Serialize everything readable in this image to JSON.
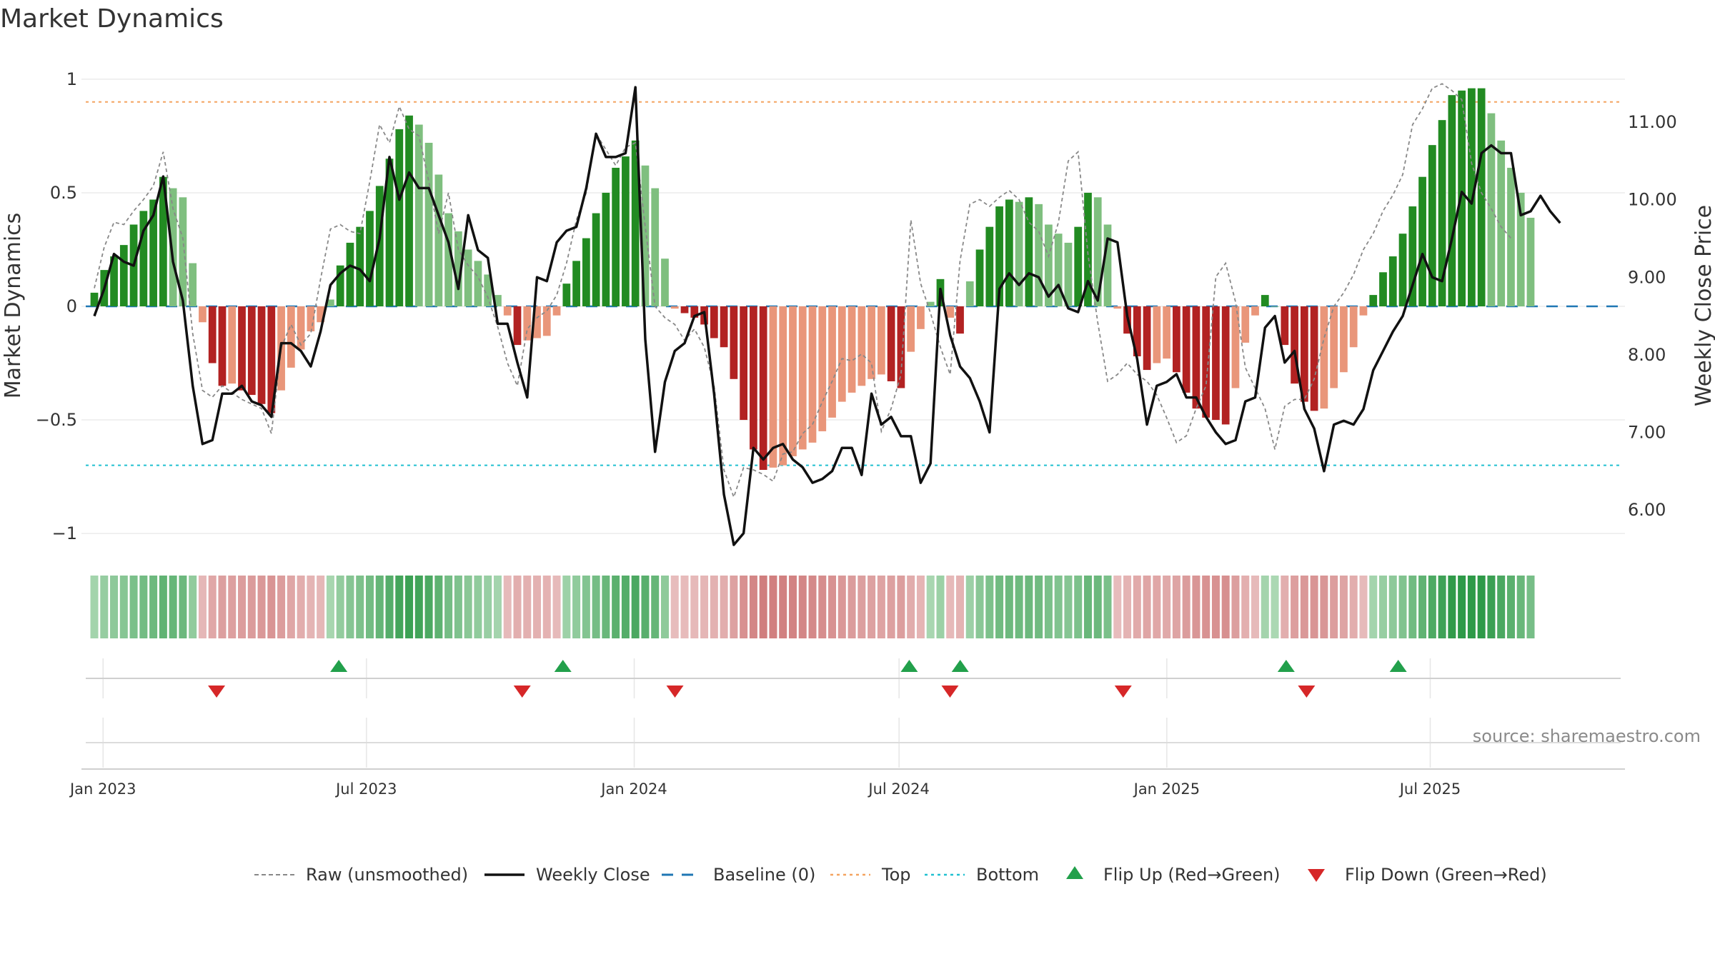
{
  "title": "Market Dynamics",
  "source": "source: sharemaestro.com",
  "colors": {
    "green_strong": "#228b22",
    "green_light": "#7fbf7f",
    "red_strong": "#b22222",
    "red_light": "#e9967a",
    "close_line": "#111111",
    "raw_line": "#888888",
    "baseline": "#1f77b4",
    "top_line": "#f4a460",
    "bottom_line": "#20c0d0",
    "flip_up": "#22a04b",
    "flip_down": "#d62728"
  },
  "legend": [
    {
      "key": "raw",
      "label": "Raw (unsmoothed)"
    },
    {
      "key": "close",
      "label": "Weekly Close"
    },
    {
      "key": "baseline",
      "label": "Baseline (0)"
    },
    {
      "key": "top",
      "label": "Top"
    },
    {
      "key": "bottom",
      "label": "Bottom"
    },
    {
      "key": "up",
      "label": "Flip Up (Red→Green)"
    },
    {
      "key": "down",
      "label": "Flip Down (Green→Red)"
    }
  ],
  "chart_data": {
    "type": "bar",
    "title": "Market Dynamics",
    "ylabel": "Market Dynamics",
    "y2label": "Weekly Close Price",
    "ylim": [
      -1.05,
      1.05
    ],
    "y2lim": [
      5.55,
      11.7
    ],
    "yticks": [
      1,
      0.5,
      0,
      -0.5,
      -1
    ],
    "ytick_labels": [
      "1",
      "0.5",
      "0",
      "−0.5",
      "−1"
    ],
    "y2ticks": [
      11,
      10,
      9,
      8,
      7,
      6
    ],
    "y2tick_labels": [
      "11.00",
      "10.00",
      "9.00",
      "8.00",
      "7.00",
      "6.00"
    ],
    "x_start": "2022-12-26",
    "x_end": "2025-09-08",
    "x_step_days": 7,
    "xticks": [
      {
        "date": "2023-01-01",
        "label": "Jan 2023"
      },
      {
        "date": "2023-07-01",
        "label": "Jul 2023"
      },
      {
        "date": "2024-01-01",
        "label": "Jan 2024"
      },
      {
        "date": "2024-07-01",
        "label": "Jul 2024"
      },
      {
        "date": "2025-01-01",
        "label": "Jan 2025"
      },
      {
        "date": "2025-07-01",
        "label": "Jul 2025"
      }
    ],
    "top_level": 0.9,
    "bottom_level": -0.7,
    "baseline": 0,
    "grid": true,
    "legend_position": "bottom",
    "series": [
      {
        "name": "Market Dynamics",
        "values": [
          0.06,
          0.16,
          0.22,
          0.27,
          0.36,
          0.42,
          0.47,
          0.57,
          0.52,
          0.48,
          0.19,
          -0.07,
          -0.25,
          -0.35,
          -0.34,
          -0.37,
          -0.39,
          -0.43,
          -0.47,
          -0.37,
          -0.27,
          -0.19,
          -0.11,
          -0.07,
          0.03,
          0.18,
          0.28,
          0.35,
          0.42,
          0.53,
          0.65,
          0.78,
          0.84,
          0.8,
          0.72,
          0.58,
          0.41,
          0.33,
          0.25,
          0.2,
          0.14,
          0.05,
          -0.04,
          -0.17,
          -0.15,
          -0.14,
          -0.13,
          -0.04,
          0.1,
          0.2,
          0.3,
          0.41,
          0.5,
          0.61,
          0.66,
          0.73,
          0.62,
          0.52,
          0.21,
          -0.01,
          -0.03,
          -0.05,
          -0.08,
          -0.14,
          -0.18,
          -0.32,
          -0.5,
          -0.63,
          -0.72,
          -0.71,
          -0.7,
          -0.66,
          -0.63,
          -0.6,
          -0.55,
          -0.49,
          -0.42,
          -0.38,
          -0.35,
          -0.32,
          -0.3,
          -0.33,
          -0.36,
          -0.2,
          -0.1,
          0.02,
          0.12,
          -0.05,
          -0.12,
          0.11,
          0.25,
          0.35,
          0.44,
          0.47,
          0.46,
          0.48,
          0.45,
          0.36,
          0.32,
          0.28,
          0.35,
          0.5,
          0.48,
          0.36,
          -0.01,
          -0.12,
          -0.22,
          -0.28,
          -0.25,
          -0.23,
          -0.29,
          -0.38,
          -0.45,
          -0.49,
          -0.5,
          -0.52,
          -0.36,
          -0.16,
          -0.04,
          0.05,
          0.0,
          -0.17,
          -0.34,
          -0.42,
          -0.46,
          -0.45,
          -0.36,
          -0.29,
          -0.18,
          -0.04,
          0.05,
          0.15,
          0.22,
          0.32,
          0.44,
          0.57,
          0.71,
          0.82,
          0.93,
          0.95,
          0.96,
          0.96,
          0.85,
          0.73,
          0.61,
          0.5,
          0.39
        ]
      },
      {
        "name": "Weekly Close",
        "values": [
          8.5,
          8.85,
          9.3,
          9.2,
          9.15,
          9.6,
          9.8,
          10.3,
          9.2,
          8.7,
          7.6,
          6.85,
          6.9,
          7.5,
          7.5,
          7.6,
          7.4,
          7.35,
          7.2,
          8.15,
          8.15,
          8.05,
          7.85,
          8.3,
          8.9,
          9.05,
          9.15,
          9.1,
          8.95,
          9.5,
          10.55,
          10.0,
          10.35,
          10.15,
          10.15,
          9.8,
          9.45,
          8.85,
          9.8,
          9.35,
          9.25,
          8.4,
          8.4,
          7.9,
          7.45,
          9.0,
          8.95,
          9.45,
          9.6,
          9.65,
          10.15,
          10.85,
          10.55,
          10.55,
          10.6,
          11.45,
          8.2,
          6.75,
          7.65,
          8.05,
          8.15,
          8.5,
          8.55,
          7.5,
          6.2,
          5.55,
          5.7,
          6.8,
          6.65,
          6.8,
          6.85,
          6.65,
          6.55,
          6.35,
          6.4,
          6.5,
          6.8,
          6.8,
          6.45,
          7.5,
          7.1,
          7.2,
          6.95,
          6.95,
          6.35,
          6.6,
          8.85,
          8.25,
          7.85,
          7.7,
          7.4,
          7.0,
          8.85,
          9.05,
          8.9,
          9.05,
          9.0,
          8.75,
          8.9,
          8.6,
          8.55,
          8.95,
          8.7,
          9.5,
          9.45,
          8.5,
          7.95,
          7.1,
          7.6,
          7.65,
          7.75,
          7.45,
          7.45,
          7.2,
          7.0,
          6.85,
          6.9,
          7.4,
          7.45,
          8.35,
          8.5,
          7.9,
          8.05,
          7.3,
          7.05,
          6.5,
          7.1,
          7.15,
          7.1,
          7.3,
          7.8,
          8.05,
          8.3,
          8.5,
          8.9,
          9.3,
          9.0,
          8.95,
          9.5,
          10.1,
          9.95,
          10.6,
          10.7,
          10.6,
          10.6,
          9.8,
          9.85,
          10.05,
          9.85,
          9.7
        ]
      },
      {
        "name": "Raw (unsmoothed)",
        "values": [
          0.08,
          0.26,
          0.37,
          0.36,
          0.42,
          0.47,
          0.53,
          0.68,
          0.43,
          0.3,
          -0.12,
          -0.37,
          -0.4,
          -0.35,
          -0.38,
          -0.41,
          -0.43,
          -0.45,
          -0.56,
          -0.18,
          -0.08,
          -0.17,
          -0.12,
          0.12,
          0.34,
          0.36,
          0.33,
          0.32,
          0.55,
          0.8,
          0.72,
          0.88,
          0.78,
          0.75,
          0.55,
          0.32,
          0.5,
          0.25,
          0.18,
          0.13,
          0.04,
          -0.09,
          -0.25,
          -0.35,
          -0.1,
          -0.05,
          -0.02,
          0.05,
          0.19,
          0.38,
          0.5,
          0.76,
          0.69,
          0.62,
          0.7,
          0.72,
          0.35,
          0.0,
          -0.05,
          -0.08,
          -0.15,
          -0.1,
          -0.18,
          -0.35,
          -0.72,
          -0.84,
          -0.71,
          -0.72,
          -0.74,
          -0.77,
          -0.65,
          -0.64,
          -0.56,
          -0.52,
          -0.42,
          -0.33,
          -0.23,
          -0.24,
          -0.21,
          -0.25,
          -0.55,
          -0.45,
          -0.3,
          0.38,
          0.1,
          -0.03,
          -0.18,
          -0.3,
          0.2,
          0.45,
          0.47,
          0.44,
          0.48,
          0.51,
          0.47,
          0.37,
          0.33,
          0.22,
          0.37,
          0.64,
          0.68,
          0.23,
          -0.07,
          -0.33,
          -0.3,
          -0.25,
          -0.3,
          -0.33,
          -0.39,
          -0.49,
          -0.6,
          -0.57,
          -0.45,
          -0.35,
          0.13,
          0.19,
          0.02,
          -0.27,
          -0.36,
          -0.45,
          -0.63,
          -0.44,
          -0.41,
          -0.41,
          -0.32,
          -0.14,
          0.0,
          0.06,
          0.14,
          0.25,
          0.32,
          0.42,
          0.49,
          0.58,
          0.8,
          0.87,
          0.96,
          0.98,
          0.95,
          0.91,
          0.63,
          0.5,
          0.43,
          0.35,
          0.3
        ]
      }
    ],
    "flip_up_dates": [
      "2023-06-12",
      "2023-11-13",
      "2024-07-08",
      "2024-08-12",
      "2025-03-24",
      "2025-06-09"
    ],
    "flip_down_dates": [
      "2023-03-20",
      "2023-10-16",
      "2024-01-29",
      "2024-08-05",
      "2024-12-02",
      "2025-04-07"
    ]
  }
}
